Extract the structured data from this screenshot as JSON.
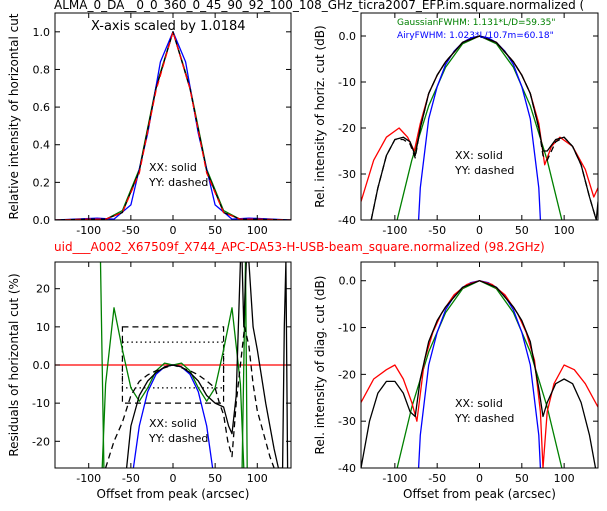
{
  "figure": {
    "top_title": "ALMA_0_DA__0_0_360_0_45_90_92_100_108_GHz_ticra2007_EFP.im.square.normalized (",
    "mid_title": "uid___A002_X67509f_X744_APC-DA53-H-USB-beam_square.normalized (98.2GHz)",
    "mid_title_color": "#ff0000"
  },
  "colors": {
    "measured": "#000000",
    "model": "#ff0000",
    "gaussian": "#008000",
    "airy": "#0000ff"
  },
  "chart_data": [
    {
      "id": "top-left",
      "type": "line",
      "ylabel": "Relative intensity of horizontal cut",
      "xlabel": "",
      "xlim": [
        -140,
        140
      ],
      "ylim": [
        0,
        1.1
      ],
      "xticks": [
        -100,
        -50,
        0,
        50,
        100
      ],
      "yticks": [
        0.0,
        0.2,
        0.4,
        0.6,
        0.8,
        1.0
      ],
      "annotation": "X-axis scaled by 1.0184",
      "legend_text": [
        "XX: solid",
        "YY: dashed"
      ],
      "series": [
        {
          "color": "#008000",
          "style": "solid",
          "x": [
            -140,
            -100,
            -80,
            -60,
            -40,
            -20,
            0,
            20,
            40,
            60,
            80,
            100,
            140
          ],
          "y": [
            0.0,
            0.0,
            0.003,
            0.05,
            0.27,
            0.71,
            1.0,
            0.71,
            0.27,
            0.05,
            0.003,
            0.0,
            0.0
          ]
        },
        {
          "color": "#0000ff",
          "style": "solid",
          "x": [
            -140,
            -90,
            -70,
            -50,
            -30,
            -15,
            0,
            15,
            30,
            50,
            70,
            90,
            140
          ],
          "y": [
            0.0,
            0.01,
            0.005,
            0.08,
            0.46,
            0.84,
            1.0,
            0.84,
            0.46,
            0.08,
            0.005,
            0.01,
            0.0
          ]
        },
        {
          "color": "#000000",
          "style": "solid",
          "x": [
            -140,
            -100,
            -80,
            -60,
            -40,
            -20,
            0,
            20,
            40,
            60,
            80,
            100,
            140
          ],
          "y": [
            0.0,
            0.005,
            0.004,
            0.04,
            0.26,
            0.7,
            1.0,
            0.7,
            0.26,
            0.04,
            0.004,
            0.005,
            0.0
          ]
        },
        {
          "color": "#ff0000",
          "style": "dashed",
          "x": [
            -140,
            -100,
            -80,
            -60,
            -40,
            -20,
            0,
            20,
            40,
            60,
            80,
            100,
            140
          ],
          "y": [
            0.0,
            0.005,
            0.004,
            0.04,
            0.25,
            0.69,
            1.0,
            0.7,
            0.25,
            0.04,
            0.004,
            0.005,
            0.0
          ]
        }
      ]
    },
    {
      "id": "top-right",
      "type": "line",
      "ylabel": "Rel. intensity of horiz. cut (dB)",
      "xlabel": "",
      "xlim": [
        -140,
        140
      ],
      "ylim": [
        -40,
        5
      ],
      "xticks": [
        -100,
        -50,
        0,
        50,
        100
      ],
      "yticks": [
        -40,
        -30,
        -20,
        -10,
        0
      ],
      "legend_text": [
        "XX: solid",
        "YY: dashed"
      ],
      "fit_labels": [
        {
          "text": "GaussianFWHM: 1.131*L/D=59.35\"",
          "color": "#008000"
        },
        {
          "text": "AiryFWHM: 1.023*L/10.7m=60.18\"",
          "color": "#0000ff"
        }
      ],
      "series": [
        {
          "color": "#008000",
          "style": "solid",
          "x": [
            -100,
            -80,
            -60,
            -40,
            -20,
            0,
            20,
            40,
            60,
            80,
            100
          ],
          "y": [
            -42,
            -27,
            -15.2,
            -6.8,
            -1.7,
            0,
            -1.7,
            -6.8,
            -15.2,
            -27,
            -42
          ]
        },
        {
          "color": "#0000ff",
          "style": "solid",
          "x": [
            -72,
            -70,
            -60,
            -50,
            -40,
            -30,
            -20,
            -10,
            0,
            10,
            20,
            30,
            40,
            50,
            60,
            70,
            72
          ],
          "y": [
            -40,
            -33,
            -18,
            -11,
            -6.2,
            -3.3,
            -1.4,
            -0.4,
            0,
            -0.4,
            -1.4,
            -3.3,
            -6.2,
            -11,
            -18,
            -33,
            -40
          ]
        },
        {
          "color": "#ff0000",
          "style": "solid",
          "x": [
            -140,
            -125,
            -110,
            -95,
            -85,
            -77,
            -70,
            -60,
            -50,
            -40,
            -20,
            0,
            20,
            40,
            50,
            60,
            70,
            77,
            85,
            95,
            110,
            125,
            135,
            140
          ],
          "y": [
            -36,
            -27,
            -22,
            -20,
            -22,
            -25,
            -19,
            -12.5,
            -8.5,
            -5.6,
            -1.4,
            0,
            -1.4,
            -5.6,
            -8.5,
            -12.5,
            -19,
            -28,
            -24,
            -22,
            -24,
            -29,
            -35,
            -33
          ]
        },
        {
          "color": "#000000",
          "style": "solid",
          "x": [
            -128,
            -120,
            -110,
            -100,
            -90,
            -82,
            -76,
            -70,
            -60,
            -50,
            -40,
            -20,
            0,
            20,
            40,
            50,
            60,
            70,
            75,
            80,
            90,
            100,
            110,
            120,
            130,
            138,
            140
          ],
          "y": [
            -40,
            -33,
            -26,
            -22.5,
            -22,
            -23,
            -26,
            -20,
            -12.5,
            -8.5,
            -5.6,
            -1.4,
            0,
            -1.4,
            -5.6,
            -8.5,
            -12.5,
            -20,
            -25,
            -25,
            -22.5,
            -22,
            -24,
            -28,
            -35,
            -40,
            -36
          ]
        },
        {
          "color": "#000000",
          "style": "dashed",
          "x": [
            -128,
            -120,
            -110,
            -100,
            -90,
            -82,
            -76,
            -70,
            -60,
            -50,
            -40,
            -20,
            0,
            20,
            40,
            50,
            60,
            70,
            75,
            80,
            90,
            100,
            110,
            120,
            130,
            138
          ],
          "y": [
            -40,
            -33,
            -26,
            -22.5,
            -22.5,
            -23.5,
            -26.5,
            -20,
            -12.5,
            -8.5,
            -5.6,
            -1.4,
            0,
            -1.4,
            -5.6,
            -8.5,
            -12.5,
            -20,
            -26,
            -27,
            -23,
            -22,
            -24,
            -28,
            -35,
            -40
          ]
        }
      ]
    },
    {
      "id": "bottom-left",
      "type": "line",
      "ylabel": "Residuals of horizontal cut (%)",
      "xlabel": "Offset from peak (arcsec)",
      "xlim": [
        -140,
        140
      ],
      "ylim": [
        -27,
        27
      ],
      "xticks": [
        -100,
        -50,
        0,
        50,
        100
      ],
      "yticks": [
        -20,
        -10,
        0,
        10,
        20
      ],
      "legend_text": [
        "XX: solid",
        "YY: dashed"
      ],
      "series": [
        {
          "color": "#ff0000",
          "style": "solid",
          "x": [
            -140,
            140
          ],
          "y": [
            0,
            0
          ]
        },
        {
          "color": "#008000",
          "style": "solid",
          "x": [
            -84,
            -80,
            -70,
            -60,
            -50,
            -40,
            -30,
            -20,
            -10,
            0,
            10,
            20,
            30,
            40,
            50,
            60,
            70,
            80,
            84
          ],
          "y": [
            -27,
            -5,
            15,
            4,
            -6,
            -9.5,
            -6,
            -1.5,
            0.5,
            0,
            0.5,
            -1.5,
            -6,
            -9.5,
            -6,
            4,
            15,
            -5,
            -27
          ]
        },
        {
          "color": "#008000",
          "style": "solid",
          "x": [
            -86,
            -84,
            -82
          ],
          "y": [
            27,
            0,
            -27
          ]
        },
        {
          "color": "#008000",
          "style": "solid",
          "x": [
            82,
            84,
            86,
            88
          ],
          "y": [
            -27,
            0,
            27,
            -27
          ]
        },
        {
          "color": "#0000ff",
          "style": "solid",
          "x": [
            -47,
            -40,
            -30,
            -20,
            -10,
            0,
            10,
            20,
            30,
            40,
            47
          ],
          "y": [
            -27,
            -16,
            -7,
            -2.4,
            -0.5,
            0,
            -0.5,
            -2.4,
            -7,
            -16,
            -27
          ]
        },
        {
          "color": "#000000",
          "style": "solid",
          "x": [
            -55,
            -50,
            -40,
            -30,
            -20,
            -10,
            0,
            10,
            20,
            30,
            40,
            50,
            60,
            66,
            70,
            75,
            80,
            82,
            84,
            87,
            90,
            95,
            100,
            105,
            110,
            115,
            120,
            125,
            130,
            132,
            134,
            136
          ],
          "y": [
            -27,
            -16,
            -8,
            -4.2,
            -2,
            -0.5,
            0,
            -0.5,
            -2,
            -4.2,
            -8,
            -10,
            -11,
            -16,
            -18,
            -8,
            27,
            27,
            10,
            27,
            27,
            10,
            4,
            -3,
            -10,
            -16,
            -22,
            -27,
            -27,
            10,
            27,
            -27
          ]
        },
        {
          "color": "#000000",
          "style": "dashed",
          "x": [
            -80,
            -70,
            -60,
            -50,
            -40,
            -30,
            -20,
            -10,
            0,
            10,
            20,
            30,
            40,
            50,
            55,
            60,
            65,
            70,
            75,
            80,
            85,
            90,
            95,
            100,
            105,
            110,
            115,
            120
          ],
          "y": [
            -27,
            -20,
            -15,
            -8,
            -4.3,
            -2.6,
            -1.5,
            -0.7,
            0,
            -0.7,
            -1.5,
            -2.6,
            -4.2,
            -6,
            -10,
            -13,
            -20,
            -24,
            -10,
            0,
            10,
            5,
            -5,
            -12,
            -16,
            -20,
            -24,
            -27
          ]
        }
      ],
      "boxes": [
        {
          "x1": -60,
          "x2": 60,
          "y1": -10,
          "y2": 10,
          "style": "dashed"
        },
        {
          "x1": -60,
          "x2": 60,
          "y1": -6,
          "y2": 6,
          "style": "dotted"
        }
      ]
    },
    {
      "id": "bottom-right",
      "type": "line",
      "ylabel": "Rel. intensity of diag. cut (dB)",
      "xlabel": "Offset from peak (arcsec)",
      "xlim": [
        -140,
        140
      ],
      "ylim": [
        -40,
        4
      ],
      "xticks": [
        -100,
        -50,
        0,
        50,
        100
      ],
      "yticks": [
        -40,
        -30,
        -20,
        -10,
        0
      ],
      "legend_text": [
        "XX: solid",
        "YY: dashed"
      ],
      "series": [
        {
          "color": "#008000",
          "style": "solid",
          "x": [
            -100,
            -80,
            -60,
            -40,
            -20,
            0,
            20,
            40,
            60,
            80,
            100
          ],
          "y": [
            -42,
            -27,
            -15.2,
            -6.8,
            -1.7,
            0,
            -1.7,
            -6.8,
            -15.2,
            -27,
            -42
          ]
        },
        {
          "color": "#0000ff",
          "style": "solid",
          "x": [
            -72,
            -70,
            -60,
            -50,
            -40,
            -30,
            -20,
            -10,
            0,
            10,
            20,
            30,
            40,
            50,
            60,
            70,
            72
          ],
          "y": [
            -40,
            -33,
            -18,
            -11,
            -6.2,
            -3.3,
            -1.4,
            -0.4,
            0,
            -0.4,
            -1.4,
            -3.3,
            -6.2,
            -11,
            -18,
            -33,
            -40
          ]
        },
        {
          "color": "#ff0000",
          "style": "solid",
          "x": [
            -140,
            -125,
            -110,
            -100,
            -90,
            -80,
            -74,
            -65,
            -55,
            -45,
            -30,
            -15,
            0,
            15,
            30,
            45,
            55,
            65,
            72,
            75,
            80,
            88,
            100,
            112,
            125,
            140
          ],
          "y": [
            -26,
            -21,
            -19,
            -18,
            -21,
            -26,
            -30,
            -17,
            -11,
            -7,
            -3,
            -0.8,
            0,
            -0.8,
            -3,
            -7,
            -11,
            -17,
            -28,
            -40,
            -28,
            -22,
            -18,
            -19,
            -22,
            -27
          ]
        },
        {
          "color": "#000000",
          "style": "solid",
          "x": [
            -140,
            -130,
            -120,
            -110,
            -100,
            -90,
            -82,
            -76,
            -70,
            -60,
            -50,
            -40,
            -20,
            0,
            20,
            40,
            50,
            60,
            70,
            75,
            80,
            90,
            100,
            110,
            120,
            130,
            137
          ],
          "y": [
            -40,
            -30,
            -24,
            -21.5,
            -21.5,
            -24,
            -28,
            -29,
            -21,
            -13,
            -8.5,
            -5.6,
            -1.4,
            0,
            -1.4,
            -5.6,
            -8.5,
            -13,
            -23,
            -29,
            -26,
            -22,
            -21,
            -22,
            -26,
            -33,
            -40
          ]
        }
      ]
    }
  ]
}
